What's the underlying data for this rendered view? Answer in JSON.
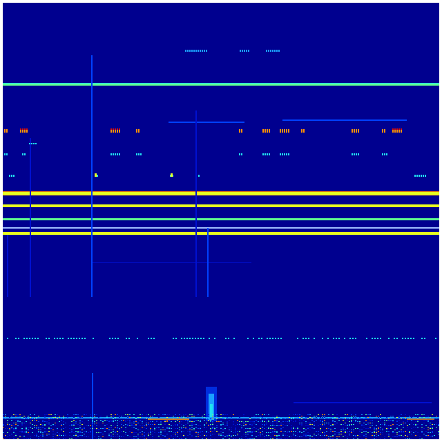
{
  "image": {
    "kind": "spectrogram-like intensity map",
    "colormap": "jet",
    "colors": {
      "background": "#00008f",
      "faint": "#0010d0",
      "blue": "#0040ff",
      "lightblue": "#1aa0ff",
      "cyan": "#20e0f0",
      "green": "#60ff90",
      "yellow": "#e8ff20",
      "orange": "#ff9000",
      "red": "#e01000"
    }
  }
}
